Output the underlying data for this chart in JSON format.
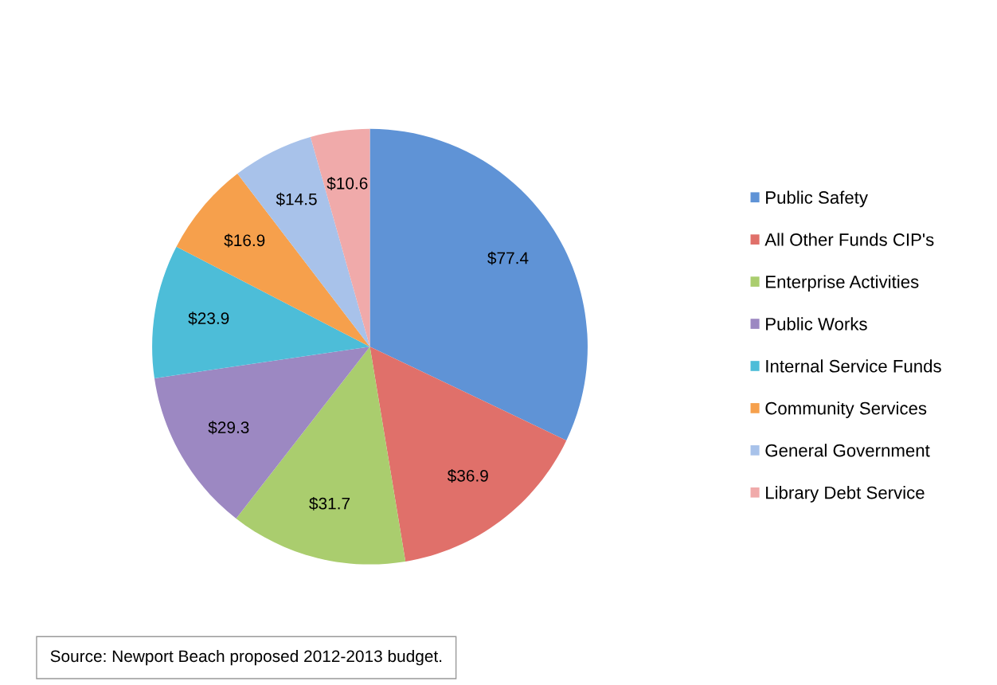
{
  "chart_data": {
    "type": "pie",
    "categories": [
      "Public Safety",
      "All Other Funds CIP's",
      "Enterprise Activities",
      "Public Works",
      "Internal Service Funds",
      "Community Services",
      "General Government",
      "Library Debt Service"
    ],
    "values": [
      77.4,
      36.9,
      31.7,
      29.3,
      23.9,
      16.9,
      14.5,
      10.6
    ],
    "value_labels": [
      "$77.4",
      "$36.9",
      "$31.7",
      "$29.3",
      "$23.9",
      "$16.9",
      "$14.5",
      "$10.6"
    ],
    "colors": [
      "#5f93d6",
      "#e0706a",
      "#aacd6e",
      "#9c88c2",
      "#4dbdd8",
      "#f6a04c",
      "#a8c2ea",
      "#f0aaaa"
    ],
    "legend": "right",
    "annotations": [
      "Source: Newport Beach proposed 2012-2013 budget."
    ]
  }
}
